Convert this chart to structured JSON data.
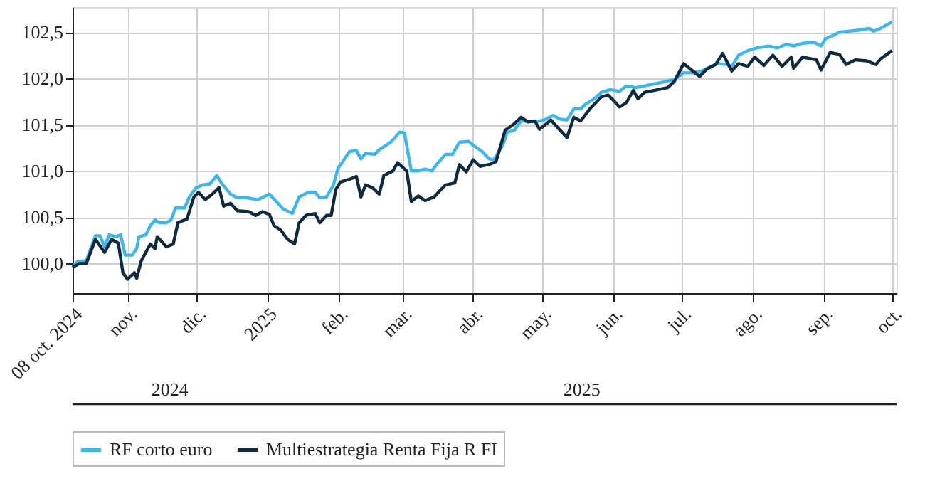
{
  "chart_data": {
    "type": "line",
    "xlim": [
      "2024-10-08",
      "2025-10-03"
    ],
    "xticks": [
      {
        "value": "2024-10-08",
        "label": "08 oct. 2024"
      },
      {
        "value": "2024-11-01",
        "label": "nov."
      },
      {
        "value": "2024-12-01",
        "label": "dic."
      },
      {
        "value": "2025-01-01",
        "label": "2025"
      },
      {
        "value": "2025-02-01",
        "label": "feb."
      },
      {
        "value": "2025-03-01",
        "label": "mar."
      },
      {
        "value": "2025-04-01",
        "label": "abr."
      },
      {
        "value": "2025-05-01",
        "label": "may."
      },
      {
        "value": "2025-06-01",
        "label": "jun."
      },
      {
        "value": "2025-07-01",
        "label": "jul."
      },
      {
        "value": "2025-08-01",
        "label": "ago."
      },
      {
        "value": "2025-09-01",
        "label": "sep."
      },
      {
        "value": "2025-10-01",
        "label": "oct."
      }
    ],
    "ylim": [
      99.68,
      102.77
    ],
    "yticks": [
      {
        "value": 100,
        "label": "100,0"
      },
      {
        "value": 100.5,
        "label": "100,5"
      },
      {
        "value": 101,
        "label": "101,0"
      },
      {
        "value": 101.5,
        "label": "101,5"
      },
      {
        "value": 102,
        "label": "102,0"
      },
      {
        "value": 102.5,
        "label": "102,5"
      }
    ],
    "grid": true,
    "legend": "bottom",
    "marker": "none",
    "line_style": "solid",
    "annotations": [
      "2024",
      "2025"
    ],
    "series": [
      {
        "name": "RF corto euro",
        "color": "#3bb6ee",
        "x": [
          "2024-10-08",
          "2024-10-10",
          "2024-10-14",
          "2024-10-18",
          "2024-10-20",
          "2024-10-22",
          "2024-10-24",
          "2024-10-27",
          "2024-10-29",
          "2024-10-31",
          "2024-11-03",
          "2024-11-05",
          "2024-11-06",
          "2024-11-09",
          "2024-11-11",
          "2024-11-13",
          "2024-11-15",
          "2024-11-18",
          "2024-11-20",
          "2024-11-22",
          "2024-11-26",
          "2024-11-28",
          "2024-12-01",
          "2024-12-04",
          "2024-12-07",
          "2024-12-10",
          "2024-12-12",
          "2024-12-16",
          "2024-12-19",
          "2024-12-23",
          "2024-12-28",
          "2025-01-02",
          "2025-01-05",
          "2025-01-08",
          "2025-01-12",
          "2025-01-15",
          "2025-01-19",
          "2025-01-22",
          "2025-01-24",
          "2025-01-27",
          "2025-01-30",
          "2025-02-01",
          "2025-02-03",
          "2025-02-06",
          "2025-02-09",
          "2025-02-11",
          "2025-02-13",
          "2025-02-17",
          "2025-02-19",
          "2025-02-24",
          "2025-02-28",
          "2025-03-02",
          "2025-03-05",
          "2025-03-08",
          "2025-03-11",
          "2025-03-14",
          "2025-03-16",
          "2025-03-20",
          "2025-03-23",
          "2025-03-26",
          "2025-03-30",
          "2025-04-02",
          "2025-04-05",
          "2025-04-08",
          "2025-04-10",
          "2025-04-14",
          "2025-04-16",
          "2025-04-19",
          "2025-04-22",
          "2025-04-28",
          "2025-05-02",
          "2025-05-06",
          "2025-05-09",
          "2025-05-12",
          "2025-05-15",
          "2025-05-18",
          "2025-05-20",
          "2025-05-24",
          "2025-05-27",
          "2025-05-31",
          "2025-06-04",
          "2025-06-07",
          "2025-06-11",
          "2025-06-15",
          "2025-06-19",
          "2025-06-23",
          "2025-06-28",
          "2025-07-02",
          "2025-07-06",
          "2025-07-10",
          "2025-07-14",
          "2025-07-17",
          "2025-07-21",
          "2025-07-23",
          "2025-07-26",
          "2025-07-30",
          "2025-08-03",
          "2025-08-08",
          "2025-08-12",
          "2025-08-16",
          "2025-08-19",
          "2025-08-23",
          "2025-08-28",
          "2025-08-31",
          "2025-09-02",
          "2025-09-05",
          "2025-09-08",
          "2025-09-12",
          "2025-09-16",
          "2025-09-21",
          "2025-09-23",
          "2025-09-26",
          "2025-10-01"
        ],
        "values": [
          99.96,
          100.02,
          100.03,
          100.3,
          100.3,
          100.18,
          100.31,
          100.29,
          100.31,
          100.09,
          100.09,
          100.16,
          100.29,
          100.31,
          100.41,
          100.47,
          100.44,
          100.44,
          100.47,
          100.6,
          100.6,
          100.72,
          100.82,
          100.85,
          100.86,
          100.95,
          100.87,
          100.75,
          100.71,
          100.71,
          100.69,
          100.75,
          100.67,
          100.59,
          100.54,
          100.72,
          100.77,
          100.77,
          100.71,
          100.72,
          100.85,
          101.03,
          101.1,
          101.21,
          101.22,
          101.13,
          101.19,
          101.18,
          101.23,
          101.31,
          101.42,
          101.41,
          101.0,
          101.0,
          101.02,
          101.0,
          101.07,
          101.18,
          101.18,
          101.31,
          101.32,
          101.26,
          101.21,
          101.13,
          101.12,
          101.28,
          101.42,
          101.44,
          101.54,
          101.53,
          101.55,
          101.6,
          101.56,
          101.55,
          101.67,
          101.67,
          101.72,
          101.78,
          101.85,
          101.88,
          101.86,
          101.92,
          101.9,
          101.92,
          101.94,
          101.96,
          101.99,
          102.06,
          102.06,
          102.08,
          102.13,
          102.16,
          102.15,
          102.13,
          102.25,
          102.3,
          102.33,
          102.35,
          102.33,
          102.37,
          102.35,
          102.38,
          102.39,
          102.35,
          102.43,
          102.46,
          102.5,
          102.51,
          102.52,
          102.54,
          102.51,
          102.54,
          102.61
        ]
      },
      {
        "name": "Multiestrategia Renta Fija R FI",
        "color": "#0e2a3f",
        "x": [
          "2024-10-08",
          "2024-10-11",
          "2024-10-14",
          "2024-10-18",
          "2024-10-22",
          "2024-10-25",
          "2024-10-28",
          "2024-10-30",
          "2024-11-01",
          "2024-11-04",
          "2024-11-05",
          "2024-11-07",
          "2024-11-11",
          "2024-11-13",
          "2024-11-14",
          "2024-11-18",
          "2024-11-21",
          "2024-11-23",
          "2024-11-27",
          "2024-11-30",
          "2024-12-02",
          "2024-12-05",
          "2024-12-08",
          "2024-12-11",
          "2024-12-13",
          "2024-12-16",
          "2024-12-19",
          "2024-12-24",
          "2024-12-27",
          "2024-12-30",
          "2025-01-02",
          "2025-01-04",
          "2025-01-07",
          "2025-01-10",
          "2025-01-13",
          "2025-01-15",
          "2025-01-18",
          "2025-01-22",
          "2025-01-24",
          "2025-01-27",
          "2025-01-29",
          "2025-01-31",
          "2025-02-02",
          "2025-02-06",
          "2025-02-09",
          "2025-02-11",
          "2025-02-13",
          "2025-02-16",
          "2025-02-19",
          "2025-02-21",
          "2025-02-25",
          "2025-02-27",
          "2025-03-03",
          "2025-03-05",
          "2025-03-08",
          "2025-03-11",
          "2025-03-15",
          "2025-03-18",
          "2025-03-20",
          "2025-03-24",
          "2025-03-26",
          "2025-03-29",
          "2025-04-01",
          "2025-04-04",
          "2025-04-08",
          "2025-04-11",
          "2025-04-15",
          "2025-04-19",
          "2025-04-22",
          "2025-04-25",
          "2025-04-28",
          "2025-04-30",
          "2025-05-05",
          "2025-05-09",
          "2025-05-12",
          "2025-05-15",
          "2025-05-18",
          "2025-05-22",
          "2025-05-27",
          "2025-05-30",
          "2025-06-01",
          "2025-06-04",
          "2025-06-07",
          "2025-06-10",
          "2025-06-12",
          "2025-06-15",
          "2025-06-19",
          "2025-06-25",
          "2025-06-28",
          "2025-07-02",
          "2025-07-05",
          "2025-07-09",
          "2025-07-12",
          "2025-07-16",
          "2025-07-19",
          "2025-07-23",
          "2025-07-26",
          "2025-07-30",
          "2025-08-02",
          "2025-08-06",
          "2025-08-10",
          "2025-08-14",
          "2025-08-18",
          "2025-08-19",
          "2025-08-23",
          "2025-08-29",
          "2025-08-31",
          "2025-09-04",
          "2025-09-08",
          "2025-09-11",
          "2025-09-15",
          "2025-09-20",
          "2025-09-24",
          "2025-09-26",
          "2025-10-01"
        ],
        "values": [
          99.96,
          100.0,
          100.0,
          100.26,
          100.12,
          100.26,
          100.22,
          99.9,
          99.83,
          99.9,
          99.84,
          100.03,
          100.21,
          100.16,
          100.29,
          100.18,
          100.21,
          100.44,
          100.48,
          100.72,
          100.77,
          100.69,
          100.75,
          100.82,
          100.62,
          100.65,
          100.57,
          100.56,
          100.52,
          100.56,
          100.53,
          100.41,
          100.36,
          100.26,
          100.21,
          100.44,
          100.52,
          100.54,
          100.44,
          100.52,
          100.52,
          100.8,
          100.88,
          100.91,
          100.94,
          100.72,
          100.85,
          100.82,
          100.75,
          100.95,
          101.0,
          101.09,
          101.0,
          100.67,
          100.73,
          100.68,
          100.72,
          100.8,
          100.85,
          100.87,
          101.07,
          100.99,
          101.12,
          101.05,
          101.07,
          101.1,
          101.44,
          101.51,
          101.58,
          101.53,
          101.54,
          101.45,
          101.55,
          101.44,
          101.36,
          101.58,
          101.54,
          101.67,
          101.8,
          101.82,
          101.77,
          101.69,
          101.74,
          101.87,
          101.78,
          101.85,
          101.87,
          101.9,
          101.97,
          102.16,
          102.1,
          102.02,
          102.1,
          102.15,
          102.27,
          102.08,
          102.16,
          102.13,
          102.23,
          102.14,
          102.25,
          102.13,
          102.23,
          102.11,
          102.23,
          102.2,
          102.09,
          102.28,
          102.26,
          102.15,
          102.2,
          102.19,
          102.15,
          102.21,
          102.3
        ]
      }
    ]
  }
}
